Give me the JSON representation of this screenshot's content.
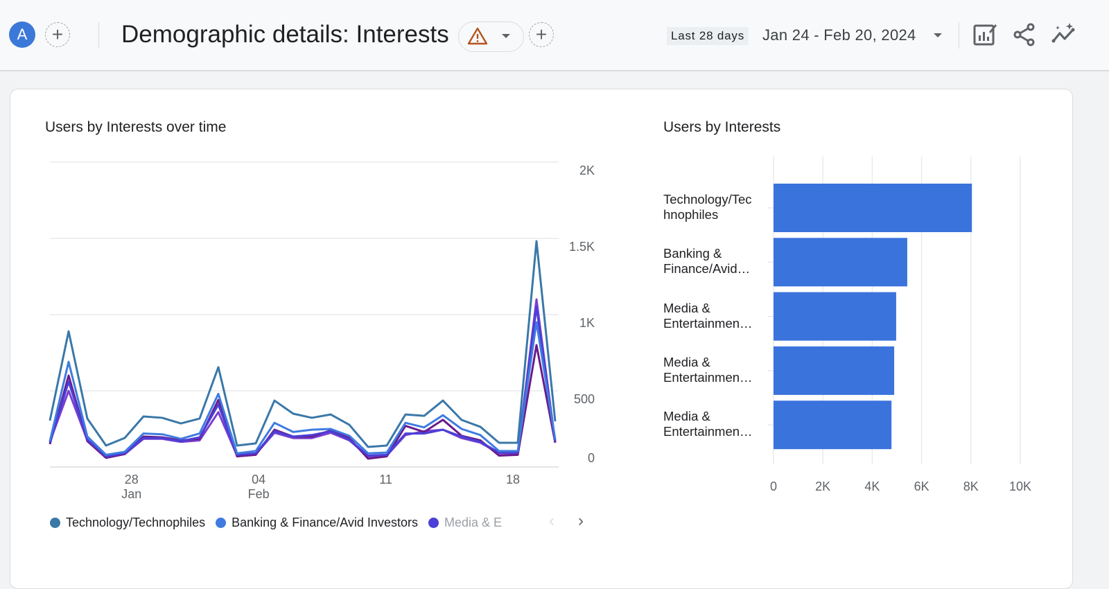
{
  "header": {
    "avatar_letter": "A",
    "title": "Demographic details: Interests",
    "date_range_chip": "Last 28 days",
    "date_range": "Jan 24 - Feb 20, 2024",
    "icons": [
      "plus-icon",
      "warning-icon",
      "chevron-down-icon",
      "customize-report-icon",
      "share-icon",
      "insights-icon"
    ]
  },
  "line_card": {
    "title": "Users by Interests over time",
    "legend": [
      {
        "label": "Technology/Technophiles",
        "color": "#3a78a8"
      },
      {
        "label": "Banking & Finance/Avid Investors",
        "color": "#3f7be0"
      },
      {
        "label": "Media & E",
        "color": "#4a3fd6"
      }
    ]
  },
  "bar_card": {
    "title": "Users by Interests"
  },
  "chart_data": [
    {
      "type": "line",
      "title": "Users by Interests over time",
      "x": [
        "Jan 24",
        "Jan 25",
        "Jan 26",
        "Jan 27",
        "Jan 28",
        "Jan 29",
        "Jan 30",
        "Jan 31",
        "Feb 01",
        "Feb 02",
        "Feb 03",
        "Feb 04",
        "Feb 05",
        "Feb 06",
        "Feb 07",
        "Feb 08",
        "Feb 09",
        "Feb 10",
        "Feb 11",
        "Feb 12",
        "Feb 13",
        "Feb 14",
        "Feb 15",
        "Feb 16",
        "Feb 17",
        "Feb 18",
        "Feb 19",
        "Feb 20"
      ],
      "x_ticks": [
        {
          "label": "28",
          "sub": "Jan",
          "index": 4
        },
        {
          "label": "04",
          "sub": "Feb",
          "index": 11
        },
        {
          "label": "11",
          "sub": "",
          "index": 18
        },
        {
          "label": "18",
          "sub": "",
          "index": 25
        }
      ],
      "y_ticks": [
        "0",
        "500",
        "1K",
        "1.5K",
        "2K"
      ],
      "ylim": [
        0,
        2000
      ],
      "y_axis_side": "right",
      "grid": true,
      "legend_position": "bottom",
      "series": [
        {
          "name": "Technology/Technophiles",
          "color": "#3a78a8",
          "values": [
            305,
            890,
            318,
            141,
            191,
            332,
            323,
            286,
            318,
            655,
            141,
            155,
            436,
            350,
            323,
            345,
            277,
            132,
            141,
            345,
            336,
            436,
            309,
            264,
            159,
            159,
            1482,
            300
          ]
        },
        {
          "name": "Banking & Finance/Avid Investors",
          "color": "#3f7be0",
          "values": [
            170,
            690,
            200,
            80,
            100,
            220,
            215,
            185,
            220,
            480,
            90,
            105,
            290,
            230,
            245,
            250,
            205,
            90,
            95,
            290,
            260,
            340,
            250,
            210,
            105,
            105,
            950,
            180
          ]
        },
        {
          "name": "Media & E",
          "color": "#4a3fd6",
          "values": [
            160,
            560,
            180,
            70,
            90,
            190,
            190,
            170,
            195,
            410,
            80,
            90,
            235,
            200,
            210,
            235,
            180,
            75,
            80,
            220,
            220,
            245,
            200,
            165,
            95,
            95,
            1050,
            170
          ]
        },
        {
          "color": "#6a1b8a",
          "values": [
            150,
            600,
            170,
            60,
            85,
            200,
            195,
            175,
            185,
            440,
            70,
            80,
            245,
            200,
            200,
            240,
            190,
            55,
            70,
            270,
            230,
            310,
            205,
            175,
            75,
            80,
            800,
            160
          ]
        },
        {
          "color": "#7a3fcf",
          "values": [
            165,
            500,
            175,
            65,
            85,
            185,
            185,
            165,
            175,
            360,
            75,
            85,
            225,
            190,
            190,
            225,
            175,
            70,
            75,
            210,
            235,
            245,
            190,
            160,
            90,
            90,
            1100,
            160
          ]
        }
      ]
    },
    {
      "type": "bar",
      "orientation": "horizontal",
      "title": "Users by Interests",
      "categories": [
        [
          "Technology/Tec",
          "hnophiles"
        ],
        [
          "Banking &",
          "Finance/Avid…"
        ],
        [
          "Media &",
          "Entertainmen…"
        ],
        [
          "Media &",
          "Entertainmen…"
        ],
        [
          "Media &",
          "Entertainmen…"
        ]
      ],
      "values": [
        8040,
        5420,
        4970,
        4890,
        4780
      ],
      "color": "#3b73dd",
      "x_ticks": [
        "0",
        "2K",
        "4K",
        "6K",
        "8K",
        "10K"
      ],
      "xlim": [
        0,
        10000
      ],
      "grid": true
    }
  ]
}
